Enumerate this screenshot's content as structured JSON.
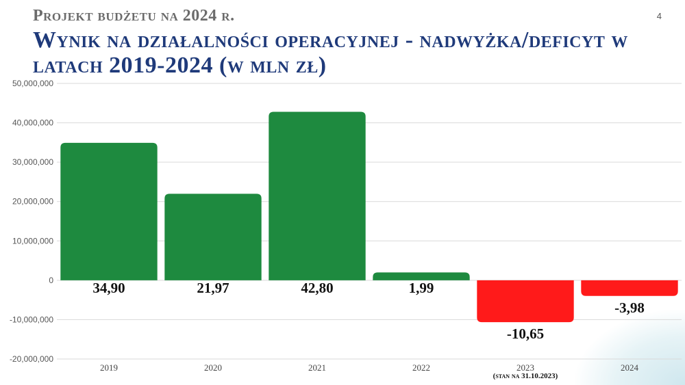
{
  "header": {
    "subtitle": "Projekt budżetu na 2024 r.",
    "page_number": "4",
    "title": "Wynik na działalności operacyjnej - nadwyżka/deficyt w latach 2019-2024 (w mln zł)"
  },
  "colors": {
    "positive": "#1e8a3f",
    "negative": "#ff1a1a",
    "title": "#1f3a7a",
    "grid": "#d9d9d9"
  },
  "chart_data": {
    "type": "bar",
    "categories": [
      "2019",
      "2020",
      "2021",
      "2022",
      "2023",
      "2024"
    ],
    "values": [
      34900000,
      21970000,
      42800000,
      1990000,
      -10650000,
      -3980000
    ],
    "data_labels": [
      "34,90",
      "21,97",
      "42,80",
      "1,99",
      "-10,65",
      "-3,98"
    ],
    "ylim": [
      -20000000,
      50000000
    ],
    "yticks": [
      -20000000,
      -10000000,
      0,
      10000000,
      20000000,
      30000000,
      40000000,
      50000000
    ],
    "ytick_labels": [
      "-20,000,000",
      "-10,000,000",
      "0",
      "10,000,000",
      "20,000,000",
      "30,000,000",
      "40,000,000",
      "50,000,000"
    ],
    "grid": true,
    "legend": "none",
    "annotations": [
      {
        "category": "2023",
        "text": "(stan na 31.10.2023)"
      }
    ]
  }
}
